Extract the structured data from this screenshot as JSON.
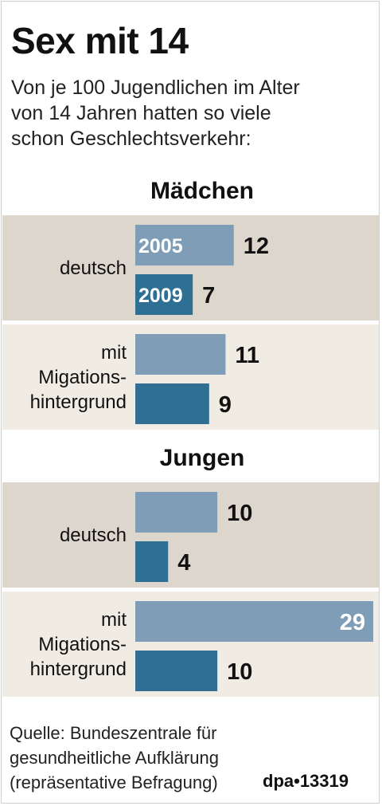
{
  "title": "Sex mit 14",
  "subtitle_lines": [
    "Von je 100 Jugendlichen im Alter",
    "von 14 Jahren hatten so viele",
    "schon Geschlechtsverkehr:"
  ],
  "source_lines": [
    "Quelle: Bundeszentrale für",
    "gesundheitliche Aufklärung",
    "(repräsentative Befragung)"
  ],
  "credit": "dpa•13319",
  "colors": {
    "band_dark": "#ddd6cc",
    "band_light": "#f0ebe3",
    "bar_2005": "#7f9db6",
    "bar_2009": "#2f6f93",
    "text": "#111111"
  },
  "chart_data": {
    "type": "bar",
    "orientation": "horizontal",
    "legend": [
      "2005",
      "2009"
    ],
    "groups": [
      {
        "heading": "Mädchen",
        "rows": [
          {
            "category_lines": [
              "deutsch"
            ],
            "values": [
              12,
              7
            ]
          },
          {
            "category_lines": [
              "mit",
              "Migations-",
              "hintergrund"
            ],
            "values": [
              11,
              9
            ]
          }
        ]
      },
      {
        "heading": "Jungen",
        "rows": [
          {
            "category_lines": [
              "deutsch"
            ],
            "values": [
              10,
              4
            ]
          },
          {
            "category_lines": [
              "mit",
              "Migations-",
              "hintergrund"
            ],
            "values": [
              29,
              10
            ]
          }
        ]
      }
    ],
    "xlim": [
      0,
      29
    ]
  }
}
